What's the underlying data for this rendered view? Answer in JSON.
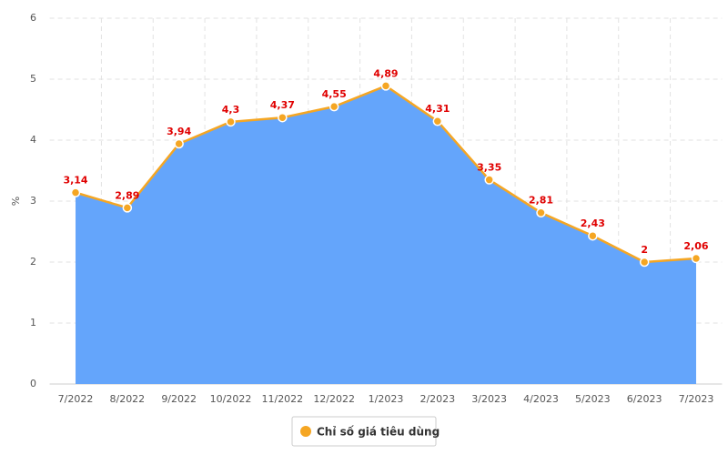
{
  "chart_data": {
    "type": "area",
    "y_label": "%",
    "categories": [
      "7/2022",
      "8/2022",
      "9/2022",
      "10/2022",
      "11/2022",
      "12/2022",
      "1/2023",
      "2/2023",
      "3/2023",
      "4/2023",
      "5/2023",
      "6/2023",
      "7/2023"
    ],
    "series": [
      {
        "name": "Chỉ số giá tiêu dùng",
        "color": "#f5a623",
        "fill": "#64a5fb",
        "values": [
          3.14,
          2.89,
          3.94,
          4.3,
          4.37,
          4.55,
          4.89,
          4.31,
          3.35,
          2.81,
          2.43,
          2,
          2.06
        ],
        "value_labels": [
          "3,14",
          "2,89",
          "3,94",
          "4,3",
          "4,37",
          "4,55",
          "4,89",
          "4,31",
          "3,35",
          "2,81",
          "2,43",
          "2",
          "2,06"
        ]
      }
    ],
    "ylim": [
      0,
      6
    ],
    "yticks": [
      0,
      1,
      2,
      3,
      4,
      5,
      6
    ],
    "grid": true,
    "legend": "bottom"
  }
}
